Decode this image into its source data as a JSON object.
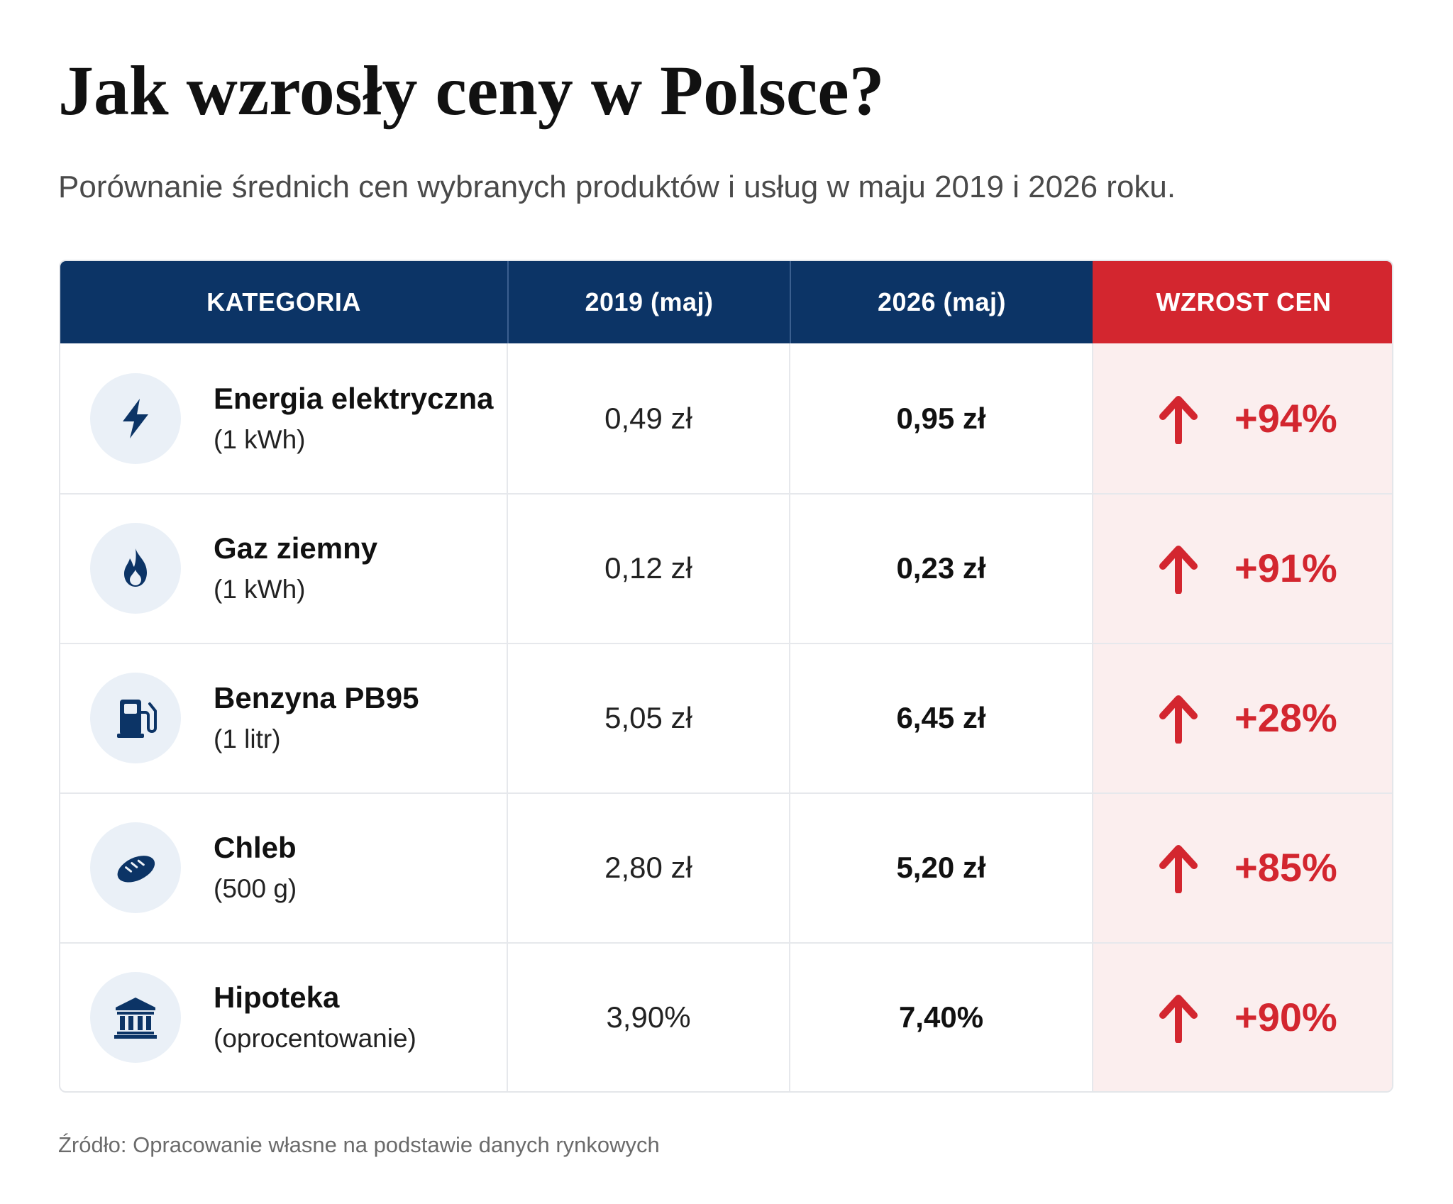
{
  "title": "Jak wzrosły ceny w Polsce?",
  "subtitle": "Porównanie średnich cen wybranych produktów i usług w maju 2019 i 2026 roku.",
  "table": {
    "headers": {
      "category": "KATEGORIA",
      "y2019": "2019 (maj)",
      "y2026": "2026 (maj)",
      "growth": "WZROST CEN"
    },
    "rows": [
      {
        "icon": "lightning-icon",
        "name": "Energia elektryczna",
        "unit": "(1 kWh)",
        "y2019": "0,49 zł",
        "y2026": "0,95 zł",
        "growth": "+94%"
      },
      {
        "icon": "flame-icon",
        "name": "Gaz ziemny",
        "unit": "(1 kWh)",
        "y2019": "0,12 zł",
        "y2026": "0,23 zł",
        "growth": "+91%"
      },
      {
        "icon": "fuel-pump-icon",
        "name": "Benzyna PB95",
        "unit": "(1 litr)",
        "y2019": "5,05 zł",
        "y2026": "6,45 zł",
        "growth": "+28%"
      },
      {
        "icon": "bread-icon",
        "name": "Chleb",
        "unit": "(500 g)",
        "y2019": "2,80 zł",
        "y2026": "5,20 zł",
        "growth": "+85%"
      },
      {
        "icon": "bank-icon",
        "name": "Hipoteka",
        "unit": "(oprocentowanie)",
        "y2019": "3,90%",
        "y2026": "7,40%",
        "growth": "+90%"
      }
    ]
  },
  "source": "Źródło: Opracowanie własne na podstawie danych rynkowych",
  "colors": {
    "header_navy": "#0c3466",
    "header_red": "#d3262f",
    "growth_text": "#d3262f",
    "growth_bg": "#fbeeee",
    "icon_bg": "#eaf0f7",
    "icon_fg": "#0c3466"
  }
}
